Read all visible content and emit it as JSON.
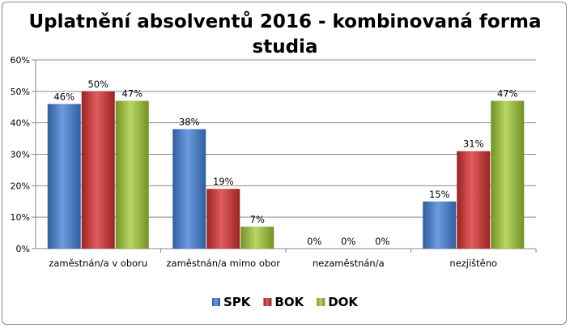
{
  "chart_data": {
    "type": "bar",
    "title_line1": "Uplatnění absolventů 2016 - kombinovaná forma",
    "title_line2": "studia",
    "categories": [
      "zaměstnán/a v oboru",
      "zaměstnán/a mimo obor",
      "nezaměstnán/a",
      "nezjištěno"
    ],
    "series": [
      {
        "name": "SPK",
        "values": [
          46,
          38,
          0,
          15
        ],
        "labels": [
          "46%",
          "38%",
          "0%",
          "15%"
        ],
        "color": "#4a7fc4"
      },
      {
        "name": "BOK",
        "values": [
          50,
          19,
          0,
          31
        ],
        "labels": [
          "50%",
          "19%",
          "0%",
          "31%"
        ],
        "color": "#c43b3b"
      },
      {
        "name": "DOK",
        "values": [
          47,
          7,
          0,
          47
        ],
        "labels": [
          "47%",
          "7%",
          "0%",
          "47%"
        ],
        "color": "#97bb3d"
      }
    ],
    "ylim": [
      0,
      60
    ],
    "yticks": [
      0,
      10,
      20,
      30,
      40,
      50,
      60
    ],
    "ytick_labels": [
      "0%",
      "10%",
      "20%",
      "30%",
      "40%",
      "50%",
      "60%"
    ],
    "grid": true,
    "legend_position": "bottom"
  }
}
